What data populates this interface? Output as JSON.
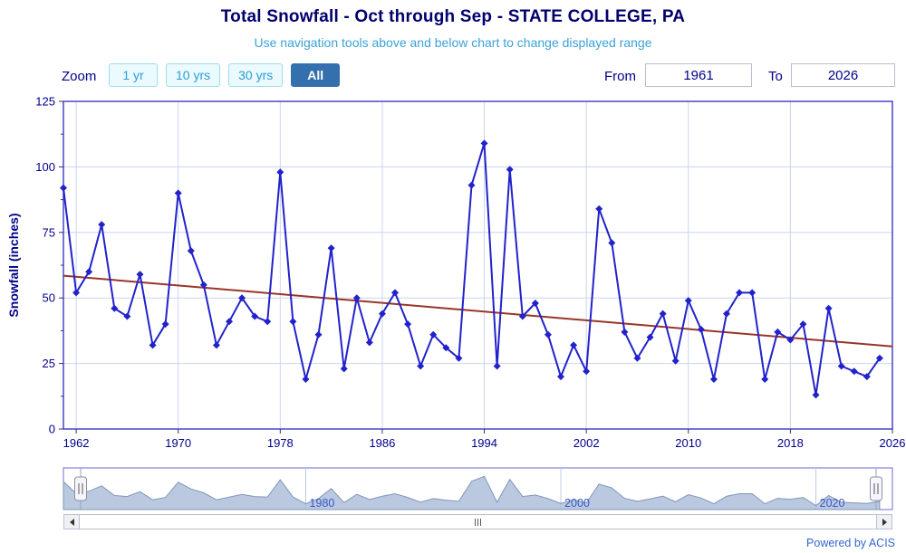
{
  "header": {
    "title": "Total Snowfall - Oct through Sep - STATE COLLEGE, PA",
    "subtitle": "Use navigation tools above and below chart to change displayed range"
  },
  "toolbar": {
    "zoom_label": "Zoom",
    "buttons": [
      {
        "label": "1 yr",
        "active": false
      },
      {
        "label": "10 yrs",
        "active": false
      },
      {
        "label": "30 yrs",
        "active": false
      },
      {
        "label": "All",
        "active": true
      }
    ],
    "from_label": "From",
    "from_value": "1961",
    "to_label": "To",
    "to_value": "2026"
  },
  "chart_data": {
    "type": "line",
    "title": "Total Snowfall - Oct through Sep - STATE COLLEGE, PA",
    "xlabel": "",
    "ylabel": "Snowfall (inches)",
    "ylim": [
      0,
      125
    ],
    "yticks": [
      0,
      25,
      50,
      75,
      100,
      125
    ],
    "xticks": [
      1962,
      1970,
      1978,
      1986,
      1994,
      2002,
      2010,
      2018,
      2026
    ],
    "x_range": [
      1961,
      2026
    ],
    "grid": true,
    "legend": "none",
    "series": [
      {
        "name": "Total Snowfall",
        "color": "#2222cc",
        "marker": "diamond",
        "x": [
          1961,
          1962,
          1963,
          1964,
          1965,
          1966,
          1967,
          1968,
          1969,
          1970,
          1971,
          1972,
          1973,
          1974,
          1975,
          1976,
          1977,
          1978,
          1979,
          1980,
          1981,
          1982,
          1983,
          1984,
          1985,
          1986,
          1987,
          1988,
          1989,
          1990,
          1991,
          1992,
          1993,
          1994,
          1995,
          1996,
          1997,
          1998,
          1999,
          2000,
          2001,
          2002,
          2003,
          2004,
          2005,
          2006,
          2007,
          2008,
          2009,
          2010,
          2011,
          2012,
          2013,
          2014,
          2015,
          2016,
          2017,
          2018,
          2019,
          2020,
          2021,
          2022,
          2023,
          2024,
          2025
        ],
        "values": [
          92,
          52,
          60,
          78,
          46,
          43,
          59,
          32,
          40,
          90,
          68,
          55,
          32,
          41,
          50,
          43,
          41,
          98,
          41,
          19,
          36,
          69,
          23,
          50,
          33,
          44,
          52,
          40,
          24,
          36,
          31,
          27,
          93,
          109,
          24,
          99,
          43,
          48,
          36,
          20,
          32,
          22,
          84,
          71,
          37,
          27,
          35,
          44,
          26,
          49,
          38,
          19,
          44,
          52,
          52,
          19,
          37,
          34,
          40,
          13,
          46,
          24,
          22,
          20,
          27
        ]
      },
      {
        "name": "Trend",
        "color": "#993526",
        "marker": "none",
        "x": [
          1961,
          2026
        ],
        "values": [
          58.5,
          31.5
        ]
      }
    ]
  },
  "navigator": {
    "range": [
      1961,
      2026
    ],
    "tick_years": [
      1980,
      2000,
      2020
    ],
    "tick_labels": [
      "1980",
      "2000",
      "2020"
    ]
  },
  "footer": {
    "credit": "Powered by ACIS"
  },
  "colors": {
    "title": "#00006e",
    "subtitle": "#3aa2d8",
    "axis_frame": "#4646c8",
    "grid": "#c9d5ee",
    "tick": "#333366",
    "axis_text": "#00008b",
    "series": "#2222cc",
    "trend": "#993526",
    "nav_fill": "#a9bcd8",
    "nav_stroke": "#8096ba",
    "nav_label": "#3a55c8",
    "button_active_bg": "#3470ad",
    "button_text": "#2d9dd1",
    "link": "#3366cc"
  }
}
